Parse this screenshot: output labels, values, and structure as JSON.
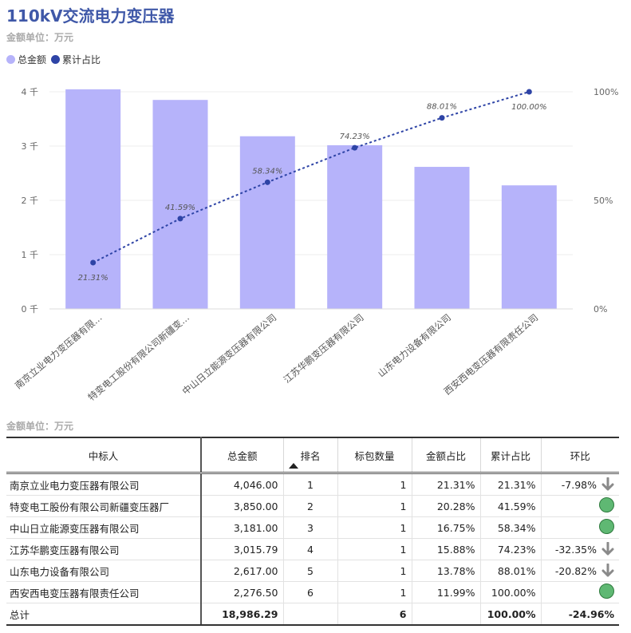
{
  "title": "110kV交流电力变压器",
  "unit_label": "金额单位：万元",
  "legend": [
    {
      "name": "总金额",
      "color": "#b6b3fa"
    },
    {
      "name": "累计占比",
      "color": "#2e44a6"
    }
  ],
  "colors": {
    "bar": "#b6b3fa",
    "line": "#2e44a6"
  },
  "chart_data": {
    "type": "bar",
    "categories": [
      "南京立业电力变压器有限…",
      "特变电工股份有限公司新疆变…",
      "中山日立能源变压器有限公司",
      "江苏华鹏变压器有限公司",
      "山东电力设备有限公司",
      "西安西电变压器有限责任公司"
    ],
    "series": [
      {
        "name": "总金额",
        "type": "bar",
        "values": [
          4046.0,
          3850.0,
          3181.0,
          3015.79,
          2617.0,
          2276.5
        ]
      },
      {
        "name": "累计占比",
        "type": "line",
        "values": [
          21.31,
          41.59,
          58.34,
          74.23,
          88.01,
          100.0
        ],
        "labels": [
          "21.31%",
          "41.59%",
          "58.34%",
          "74.23%",
          "88.01%",
          "100.00%"
        ]
      }
    ],
    "y_left": {
      "range": [
        0,
        4000
      ],
      "ticks": [
        0,
        1000,
        2000,
        3000,
        4000
      ],
      "tick_labels": [
        "0 千",
        "1 千",
        "2 千",
        "3 千",
        "4 千"
      ]
    },
    "y_right": {
      "range": [
        0,
        100
      ],
      "ticks": [
        0,
        50,
        100
      ],
      "tick_labels": [
        "0%",
        "50%",
        "100%"
      ]
    },
    "grid": true,
    "legend_position": "top-left"
  },
  "table": {
    "headers": [
      "中标人",
      "总金额",
      "排名",
      "标包数量",
      "金额占比",
      "累计占比",
      "环比"
    ],
    "rows": [
      {
        "name": "南京立业电力变压器有限公司",
        "amount": "4,046.00",
        "rank": "1",
        "count": "1",
        "share": "21.31%",
        "cum": "21.31%",
        "mom": "-7.98%",
        "trend": "down"
      },
      {
        "name": "特变电工股份有限公司新疆变压器厂",
        "amount": "3,850.00",
        "rank": "2",
        "count": "1",
        "share": "20.28%",
        "cum": "41.59%",
        "mom": "",
        "trend": "ok"
      },
      {
        "name": "中山日立能源变压器有限公司",
        "amount": "3,181.00",
        "rank": "3",
        "count": "1",
        "share": "16.75%",
        "cum": "58.34%",
        "mom": "",
        "trend": "ok"
      },
      {
        "name": "江苏华鹏变压器有限公司",
        "amount": "3,015.79",
        "rank": "4",
        "count": "1",
        "share": "15.88%",
        "cum": "74.23%",
        "mom": "-32.35%",
        "trend": "down"
      },
      {
        "name": "山东电力设备有限公司",
        "amount": "2,617.00",
        "rank": "5",
        "count": "1",
        "share": "13.78%",
        "cum": "88.01%",
        "mom": "-20.82%",
        "trend": "down"
      },
      {
        "name": "西安西电变压器有限责任公司",
        "amount": "2,276.50",
        "rank": "6",
        "count": "1",
        "share": "11.99%",
        "cum": "100.00%",
        "mom": "",
        "trend": "ok"
      }
    ],
    "total": {
      "label": "总计",
      "amount": "18,986.29",
      "count": "6",
      "cum": "100.00%",
      "mom": "-24.96%"
    }
  }
}
